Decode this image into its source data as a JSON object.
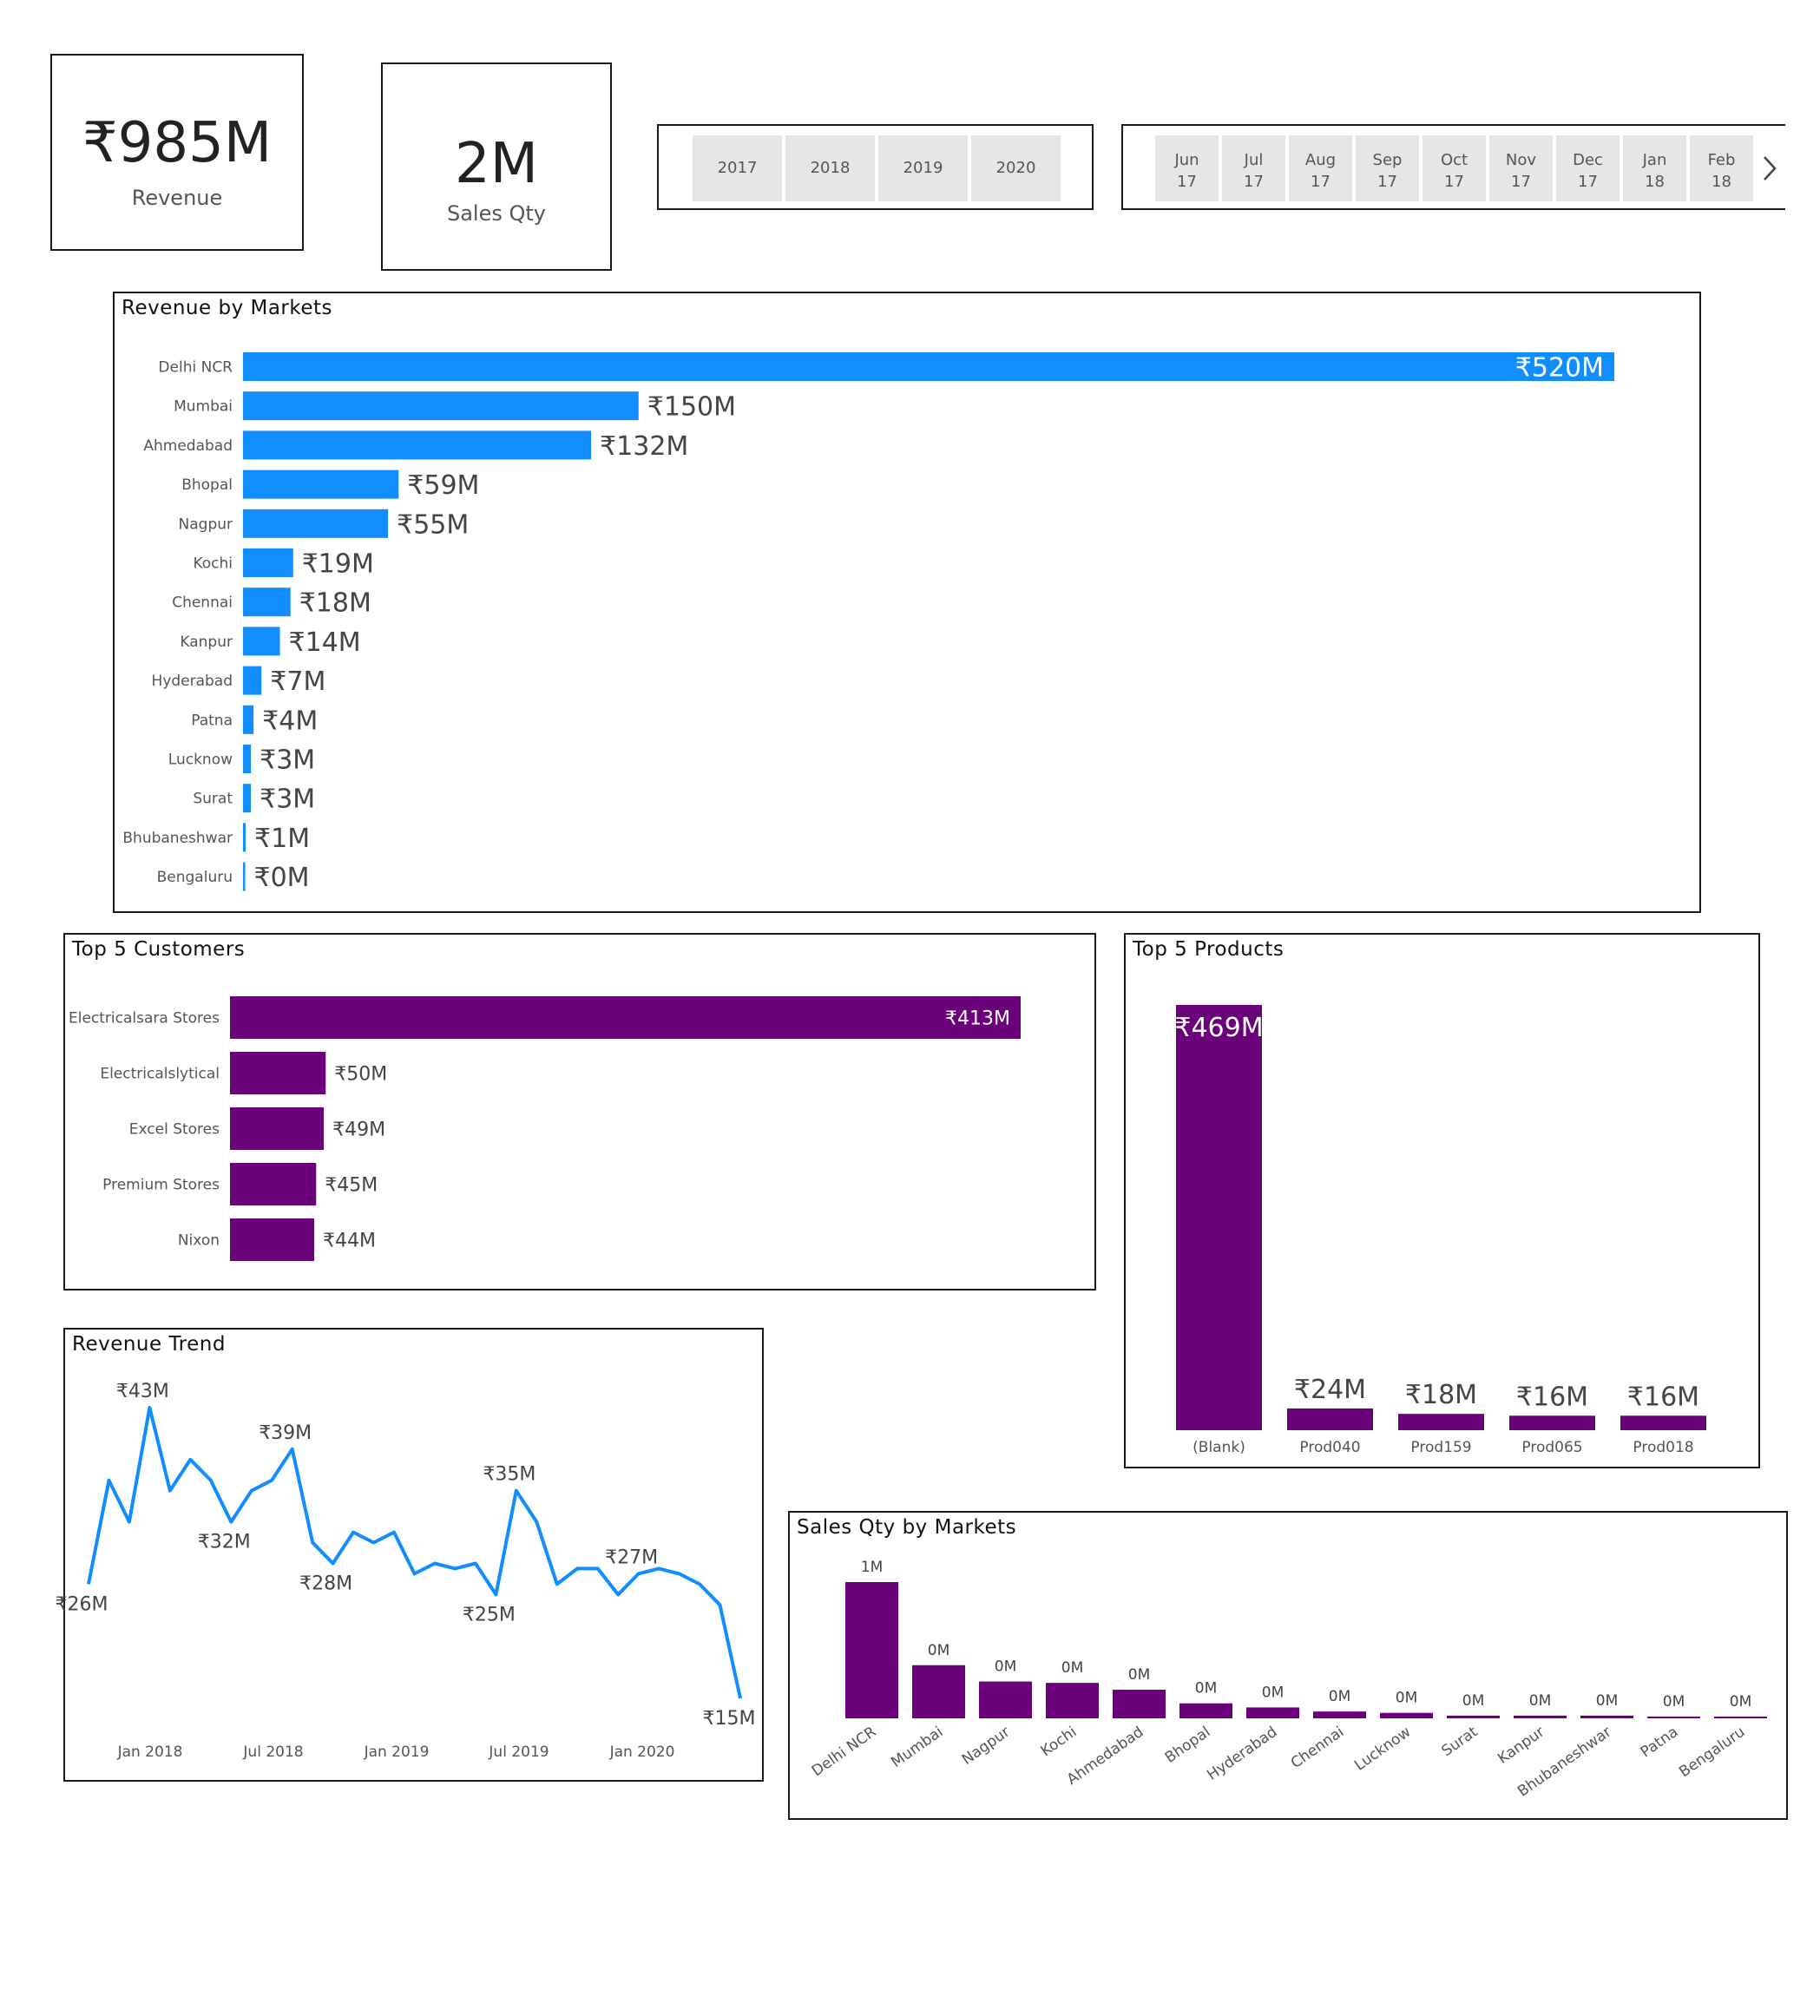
{
  "kpis": {
    "revenue": {
      "value": "₹985M",
      "label": "Revenue"
    },
    "sales_qty": {
      "value": "2M",
      "label": "Sales Qty"
    }
  },
  "year_slicer": {
    "years": [
      "2017",
      "2018",
      "2019",
      "2020"
    ]
  },
  "month_slicer": {
    "months": [
      {
        "month": "Jun",
        "year": "17"
      },
      {
        "month": "Jul",
        "year": "17"
      },
      {
        "month": "Aug",
        "year": "17"
      },
      {
        "month": "Sep",
        "year": "17"
      },
      {
        "month": "Oct",
        "year": "17"
      },
      {
        "month": "Nov",
        "year": "17"
      },
      {
        "month": "Dec",
        "year": "17"
      },
      {
        "month": "Jan",
        "year": "18"
      },
      {
        "month": "Feb",
        "year": "18"
      }
    ],
    "next_icon": "chevron-right-icon"
  },
  "colors": {
    "blue": "#118DFF",
    "purple": "#6B007B",
    "frame": "#1a1a1a"
  },
  "chart_data": [
    {
      "id": "revenue_by_markets",
      "type": "bar",
      "orientation": "horizontal",
      "title": "Revenue by Markets",
      "categories": [
        "Delhi NCR",
        "Mumbai",
        "Ahmedabad",
        "Bhopal",
        "Nagpur",
        "Kochi",
        "Chennai",
        "Kanpur",
        "Hyderabad",
        "Patna",
        "Lucknow",
        "Surat",
        "Bhubaneshwar",
        "Bengaluru"
      ],
      "values": [
        520,
        150,
        132,
        59,
        55,
        19,
        18,
        14,
        7,
        4,
        3,
        3,
        1,
        0
      ],
      "labels": [
        "₹520M",
        "₹150M",
        "₹132M",
        "₹59M",
        "₹55M",
        "₹19M",
        "₹18M",
        "₹14M",
        "₹7M",
        "₹4M",
        "₹3M",
        "₹3M",
        "₹1M",
        "₹0M"
      ],
      "unit": "₹M",
      "xlim": [
        0,
        520
      ]
    },
    {
      "id": "top5_customers",
      "type": "bar",
      "orientation": "horizontal",
      "title": "Top 5 Customers",
      "categories": [
        "Electricalsara Stores",
        "Electricalslytical",
        "Excel Stores",
        "Premium Stores",
        "Nixon"
      ],
      "values": [
        413,
        50,
        49,
        45,
        44
      ],
      "labels": [
        "₹413M",
        "₹50M",
        "₹49M",
        "₹45M",
        "₹44M"
      ],
      "unit": "₹M",
      "xlim": [
        0,
        413
      ]
    },
    {
      "id": "top5_products",
      "type": "bar",
      "orientation": "vertical",
      "title": "Top 5 Products",
      "categories": [
        "(Blank)",
        "Prod040",
        "Prod159",
        "Prod065",
        "Prod018"
      ],
      "values": [
        469,
        24,
        18,
        16,
        16
      ],
      "labels": [
        "₹469M",
        "₹24M",
        "₹18M",
        "₹16M",
        "₹16M"
      ],
      "unit": "₹M",
      "ylim": [
        0,
        469
      ]
    },
    {
      "id": "revenue_trend",
      "type": "line",
      "title": "Revenue Trend",
      "x_tick_labels": [
        "Jan 2018",
        "Jul 2018",
        "Jan 2019",
        "Jul 2019",
        "Jan 2020"
      ],
      "values": [
        26,
        36,
        32,
        43,
        35,
        38,
        36,
        32,
        35,
        36,
        39,
        30,
        28,
        31,
        30,
        31,
        27,
        28,
        27.5,
        28,
        25,
        35,
        32,
        26,
        27.5,
        27.5,
        25,
        27,
        27.5,
        27,
        26,
        24,
        15
      ],
      "point_labels": [
        {
          "index": 0,
          "text": "₹26M"
        },
        {
          "index": 3,
          "text": "₹43M"
        },
        {
          "index": 7,
          "text": "₹32M"
        },
        {
          "index": 10,
          "text": "₹39M"
        },
        {
          "index": 12,
          "text": "₹28M"
        },
        {
          "index": 20,
          "text": "₹25M"
        },
        {
          "index": 21,
          "text": "₹35M"
        },
        {
          "index": 27,
          "text": "₹27M"
        },
        {
          "index": 32,
          "text": "₹15M"
        }
      ],
      "unit": "₹M",
      "ylim": [
        14,
        44
      ]
    },
    {
      "id": "sales_qty_by_markets",
      "type": "bar",
      "orientation": "vertical",
      "title": "Sales Qty by Markets",
      "categories": [
        "Delhi NCR",
        "Mumbai",
        "Nagpur",
        "Kochi",
        "Ahmedabad",
        "Bhopal",
        "Hyderabad",
        "Chennai",
        "Lucknow",
        "Surat",
        "Kanpur",
        "Bhubaneshwar",
        "Patna",
        "Bengaluru"
      ],
      "values": [
        1.0,
        0.39,
        0.27,
        0.26,
        0.21,
        0.11,
        0.08,
        0.05,
        0.04,
        0.02,
        0.02,
        0.02,
        0.01,
        0.01
      ],
      "labels": [
        "1M",
        "0M",
        "0M",
        "0M",
        "0M",
        "0M",
        "0M",
        "0M",
        "0M",
        "0M",
        "0M",
        "0M",
        "0M",
        "0M"
      ],
      "unit": "M units",
      "ylim": [
        0,
        1
      ]
    }
  ]
}
